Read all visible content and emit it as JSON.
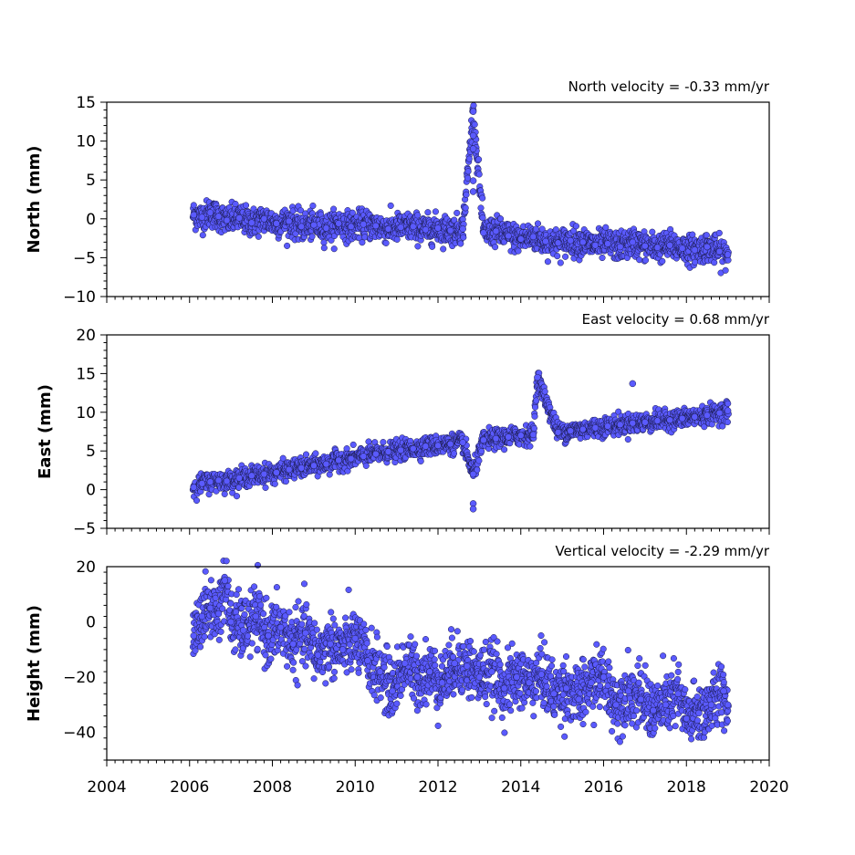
{
  "chart_data": [
    {
      "type": "scatter",
      "title": "North velocity = -0.33 mm/yr",
      "ylabel": "North (mm)",
      "xlabel": "",
      "xlim": [
        2004,
        2020
      ],
      "ylim": [
        -10,
        15
      ],
      "xticks": [
        2004,
        2006,
        2008,
        2010,
        2012,
        2014,
        2016,
        2018,
        2020
      ],
      "yticks": [
        -10,
        -5,
        0,
        5,
        10,
        15
      ],
      "yticklabels": [
        "−10",
        "−5",
        "0",
        "5",
        "10",
        "15"
      ],
      "grid": false,
      "marker_color": "#5a5aff",
      "marker_edge": "#1a1a4a",
      "series": [
        {
          "x": [
            2006.1,
            2006.3,
            2006.5,
            2006.7,
            2006.9,
            2007.2,
            2007.5,
            2007.8,
            2008.1,
            2008.4,
            2008.7,
            2009.0,
            2009.3,
            2009.6,
            2009.9,
            2010.2,
            2010.5,
            2010.8,
            2011.1,
            2011.4,
            2011.7,
            2012.0,
            2012.3,
            2012.6,
            2012.85,
            2012.85,
            2012.85,
            2012.85,
            2012.85,
            2013.1,
            2013.4,
            2013.7,
            2014.0,
            2014.3,
            2014.6,
            2014.9,
            2015.2,
            2015.5,
            2015.8,
            2016.1,
            2016.4,
            2016.7,
            2017.0,
            2017.3,
            2017.6,
            2017.9,
            2018.2,
            2018.5,
            2018.8,
            2019.0
          ],
          "y": [
            0.5,
            0.2,
            0.8,
            0.3,
            -0.2,
            0.1,
            -0.5,
            0.0,
            -0.6,
            -0.3,
            -1.0,
            -0.8,
            -1.2,
            -0.6,
            -1.0,
            -0.7,
            -0.9,
            -1.3,
            -1.1,
            -1.0,
            -1.4,
            -1.2,
            -1.5,
            -1.3,
            13.8,
            10.7,
            9.0,
            4.9,
            3.5,
            -1.8,
            -1.6,
            -2.2,
            -2.6,
            -2.3,
            -2.9,
            -3.1,
            -2.8,
            -3.0,
            -3.4,
            -3.2,
            -3.6,
            -3.0,
            -3.5,
            -3.7,
            -3.4,
            -3.8,
            -4.0,
            -3.6,
            -4.2,
            -4.6
          ]
        }
      ]
    },
    {
      "type": "scatter",
      "title": "East velocity = 0.68 mm/yr",
      "ylabel": "East (mm)",
      "xlabel": "",
      "xlim": [
        2004,
        2020
      ],
      "ylim": [
        -5,
        20
      ],
      "xticks": [
        2004,
        2006,
        2008,
        2010,
        2012,
        2014,
        2016,
        2018,
        2020
      ],
      "yticks": [
        -5,
        0,
        5,
        10,
        15,
        20
      ],
      "yticklabels": [
        "−5",
        "0",
        "5",
        "10",
        "15",
        "20"
      ],
      "grid": false,
      "marker_color": "#5a5aff",
      "marker_edge": "#1a1a4a",
      "series": [
        {
          "x": [
            2006.1,
            2006.3,
            2006.5,
            2006.7,
            2006.9,
            2007.2,
            2007.5,
            2007.8,
            2008.1,
            2008.4,
            2008.7,
            2009.0,
            2009.3,
            2009.6,
            2009.9,
            2010.2,
            2010.5,
            2010.8,
            2011.1,
            2011.4,
            2011.7,
            2012.0,
            2012.3,
            2012.6,
            2012.85,
            2012.85,
            2012.85,
            2013.1,
            2013.4,
            2013.7,
            2014.0,
            2014.3,
            2014.4,
            2014.9,
            2015.2,
            2015.5,
            2015.8,
            2016.1,
            2016.4,
            2016.7,
            2016.7,
            2017.0,
            2017.3,
            2017.6,
            2017.9,
            2018.2,
            2018.5,
            2018.8,
            2019.0
          ],
          "y": [
            0.3,
            0.8,
            1.0,
            1.2,
            1.1,
            1.5,
            1.8,
            2.0,
            2.2,
            2.6,
            2.8,
            3.1,
            3.3,
            3.8,
            4.0,
            4.3,
            4.6,
            4.9,
            5.1,
            5.3,
            5.6,
            5.7,
            5.9,
            6.1,
            2.0,
            -1.8,
            -2.5,
            6.4,
            6.6,
            6.8,
            7.0,
            7.1,
            14.5,
            7.4,
            7.6,
            7.8,
            8.0,
            8.2,
            8.4,
            8.6,
            13.7,
            8.7,
            8.9,
            9.0,
            9.2,
            9.4,
            9.6,
            9.9,
            10.2
          ]
        }
      ]
    },
    {
      "type": "scatter",
      "title": "Vertical velocity = -2.29 mm/yr",
      "ylabel": "Height (mm)",
      "xlabel": "",
      "xlim": [
        2004,
        2020
      ],
      "ylim": [
        -50,
        20
      ],
      "xticks": [
        2004,
        2006,
        2008,
        2010,
        2012,
        2014,
        2016,
        2018,
        2020
      ],
      "xticklabels": [
        "2004",
        "2006",
        "2008",
        "2010",
        "2012",
        "2014",
        "2016",
        "2018",
        "2020"
      ],
      "yticks": [
        -40,
        -20,
        0,
        20
      ],
      "yticklabels": [
        "−40",
        "−20",
        "0",
        "20"
      ],
      "grid": false,
      "marker_color": "#5a5aff",
      "marker_edge": "#1a1a4a",
      "series": [
        {
          "x": [
            2006.1,
            2006.3,
            2006.5,
            2006.7,
            2006.85,
            2007.0,
            2007.3,
            2007.6,
            2007.9,
            2008.2,
            2008.5,
            2008.8,
            2009.1,
            2009.4,
            2009.7,
            2010.0,
            2010.3,
            2010.6,
            2010.9,
            2011.2,
            2011.5,
            2011.8,
            2012.1,
            2012.4,
            2012.7,
            2013.0,
            2013.3,
            2013.6,
            2013.9,
            2014.2,
            2014.5,
            2014.8,
            2015.1,
            2015.4,
            2015.7,
            2016.0,
            2016.3,
            2016.6,
            2016.9,
            2017.2,
            2017.5,
            2017.8,
            2018.0,
            2018.3,
            2018.6,
            2018.9,
            2019.0
          ],
          "y": [
            -5,
            2,
            5,
            3,
            15,
            0,
            -3,
            2,
            -5,
            -2,
            -8,
            -4,
            -12,
            -8,
            -10,
            -6,
            -14,
            -18,
            -25,
            -15,
            -20,
            -18,
            -22,
            -15,
            -16,
            -20,
            -18,
            -24,
            -20,
            -22,
            -19,
            -26,
            -24,
            -28,
            -22,
            -20,
            -30,
            -25,
            -28,
            -32,
            -30,
            -26,
            -35,
            -33,
            -30,
            -25,
            -30
          ]
        }
      ]
    }
  ]
}
